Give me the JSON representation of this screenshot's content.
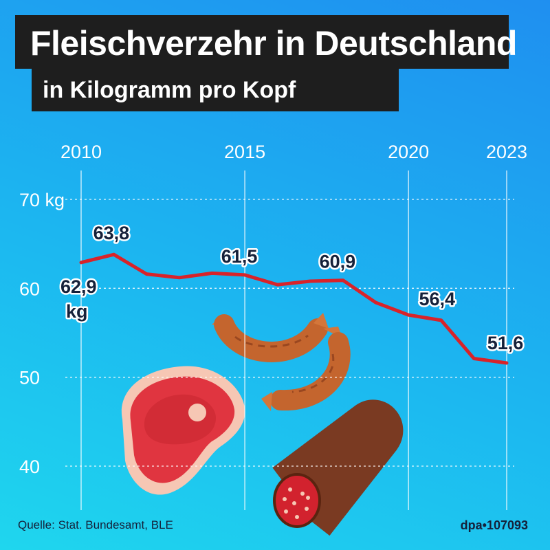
{
  "chart_data": {
    "type": "line",
    "title": "Fleischverzehr in Deutschland",
    "subtitle": "in Kilogramm pro Kopf",
    "x": [
      2010,
      2011,
      2012,
      2013,
      2014,
      2015,
      2016,
      2017,
      2018,
      2019,
      2020,
      2021,
      2022,
      2023
    ],
    "values": [
      62.9,
      63.8,
      61.6,
      61.2,
      61.7,
      61.5,
      60.4,
      60.8,
      60.9,
      58.4,
      57.0,
      56.4,
      52.1,
      51.6
    ],
    "xticks": [
      {
        "value": 2010,
        "label": "2010"
      },
      {
        "value": 2015,
        "label": "2015"
      },
      {
        "value": 2020,
        "label": "2020"
      },
      {
        "value": 2023,
        "label": "2023"
      }
    ],
    "yticks": [
      {
        "value": 70,
        "label": "70 kg"
      },
      {
        "value": 60,
        "label": "60"
      },
      {
        "value": 50,
        "label": "50"
      },
      {
        "value": 40,
        "label": "40"
      }
    ],
    "ylim": [
      40,
      70
    ],
    "line_color": "#d8232a",
    "data_labels": [
      {
        "x": 2010,
        "y": 62.9,
        "text": "62,9",
        "unit": "kg"
      },
      {
        "x": 2011,
        "y": 63.8,
        "text": "63,8"
      },
      {
        "x": 2015,
        "y": 61.5,
        "text": "61,5"
      },
      {
        "x": 2018,
        "y": 60.9,
        "text": "60,9"
      },
      {
        "x": 2021,
        "y": 56.4,
        "text": "56,4"
      },
      {
        "x": 2023,
        "y": 51.6,
        "text": "51,6"
      }
    ],
    "grid": true
  },
  "footer": {
    "source": "Quelle: Stat. Bundesamt, BLE",
    "credit": "dpa•107093"
  },
  "illustrations": [
    "steak-icon",
    "sausage-icon",
    "salami-icon"
  ]
}
